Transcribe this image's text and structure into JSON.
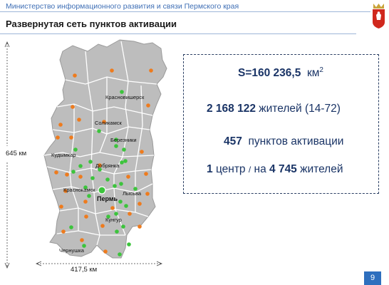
{
  "header": {
    "ministry": "Министерство информационного развития и связи Пермского края",
    "title": "Развернутая сеть пунктов активации"
  },
  "map": {
    "cities": {
      "krasnovishersk": "Красновишерск",
      "solikamsk": "Соликамск",
      "berezniki": "Березники",
      "kudymkar": "Кудымкар",
      "dobryanka": "Добрянка",
      "krasnokamsk": "Краснокамск",
      "perm": "Пермь",
      "lysva": "Лысьва",
      "kungur": "Кунгур",
      "chernushka": "Чернушка"
    },
    "height_label": "645 км",
    "width_label": "417,5 км",
    "colors": {
      "region_fill": "#bdbdbd",
      "district_borders": "#ffffff",
      "activation_point_green": "#3cc43c",
      "activation_point_orange": "#ee7b1d"
    }
  },
  "stats": {
    "area_prefix": "S=160 236,5",
    "area_unit": "км",
    "area_sup": "2",
    "population_value": "2 168 122",
    "population_rest": "жителей (14-72)",
    "points_value": "457",
    "points_rest": "пунктов активации",
    "ratio_prefix": "1",
    "ratio_center": "центр",
    "ratio_slash": "/",
    "ratio_na": "на",
    "ratio_value": "4 745",
    "ratio_rest": "жителей"
  },
  "page_number": "9",
  "colors": {
    "accent_blue": "#2e6fbe",
    "stats_text": "#1a3466",
    "crest_red": "#d0281d"
  }
}
